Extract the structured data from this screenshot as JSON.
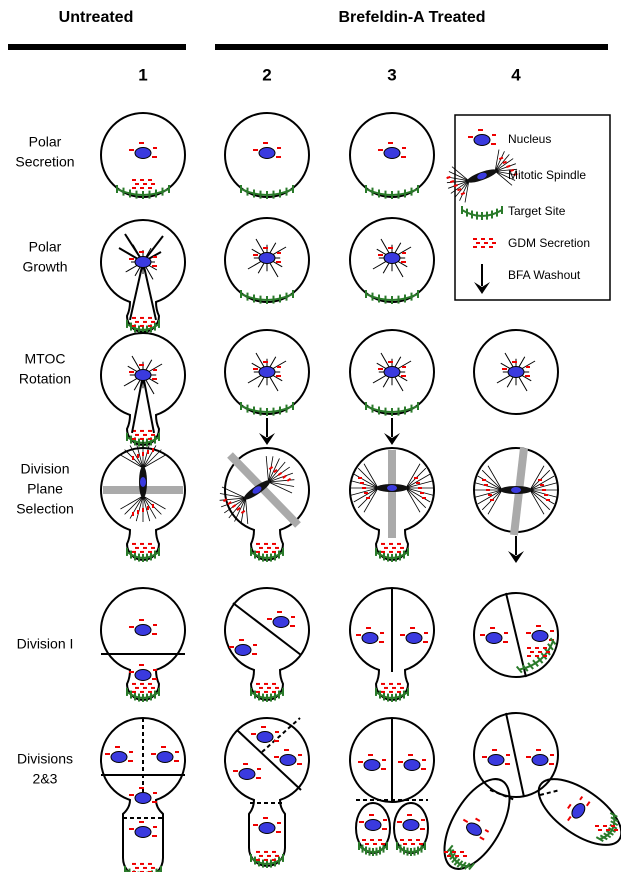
{
  "header": {
    "untreated": "Untreated",
    "treated": "Brefeldin-A Treated",
    "columns": [
      "1",
      "2",
      "3",
      "4"
    ]
  },
  "rows": [
    [
      "Polar",
      "Secretion"
    ],
    [
      "Polar",
      "Growth"
    ],
    [
      "MTOC",
      "Rotation"
    ],
    [
      "Division",
      "Plane",
      "Selection"
    ],
    [
      "Division I"
    ],
    [
      "Divisions",
      "2&3"
    ]
  ],
  "legend": [
    "Nucleus",
    "Mitotic Spindle",
    "Target Site",
    "GDM Secretion",
    "BFA Washout"
  ]
}
